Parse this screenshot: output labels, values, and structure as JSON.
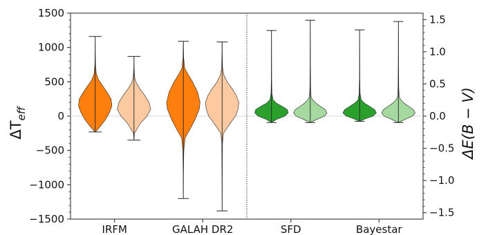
{
  "chart_data": {
    "type": "violin",
    "categories": [
      "IRFM",
      "GALAH DR2",
      "SFD",
      "Bayestar"
    ],
    "left_axis": {
      "label_symbol": "ΔT",
      "label_subscript": "eff",
      "ylim": [
        -1500,
        1500
      ],
      "ticks": [
        -1500,
        -1000,
        -500,
        0,
        500,
        1000,
        1500
      ],
      "tick_labels": [
        "−1500",
        "−1000",
        "−500",
        "0",
        "500",
        "1000",
        "1500"
      ]
    },
    "right_axis": {
      "label": "ΔE(B − V)",
      "ylim": [
        -1.6,
        1.6
      ],
      "ticks": [
        -1.5,
        -1.0,
        -0.5,
        0.0,
        0.5,
        1.0,
        1.5
      ],
      "tick_labels": [
        "−1.5",
        "−1.0",
        "−0.5",
        "0.0",
        "0.5",
        "1.0",
        "1.5"
      ]
    },
    "divider_between": [
      "GALAH DR2",
      "SFD"
    ],
    "zero_line": true,
    "violins": [
      {
        "category": "IRFM",
        "axis": "left",
        "shade": "dark",
        "color": "#ff7f0e",
        "min": -230,
        "max": 1160,
        "median": 150,
        "width": 0.26,
        "profile": [
          [
            -230,
            0.02
          ],
          [
            -150,
            0.3
          ],
          [
            -50,
            0.62
          ],
          [
            50,
            0.85
          ],
          [
            150,
            1.0
          ],
          [
            250,
            0.95
          ],
          [
            350,
            0.7
          ],
          [
            450,
            0.42
          ],
          [
            530,
            0.2
          ],
          [
            620,
            0.06
          ],
          [
            750,
            0.02
          ],
          [
            900,
            0.01
          ],
          [
            1160,
            0.0
          ]
        ]
      },
      {
        "category": "IRFM",
        "axis": "left",
        "shade": "light",
        "color": "#fcc9a0",
        "min": -350,
        "max": 870,
        "median": 140,
        "width": 0.26,
        "profile": [
          [
            -350,
            0.0
          ],
          [
            -250,
            0.03
          ],
          [
            -100,
            0.4
          ],
          [
            0,
            0.78
          ],
          [
            100,
            1.0
          ],
          [
            200,
            0.9
          ],
          [
            300,
            0.65
          ],
          [
            400,
            0.35
          ],
          [
            480,
            0.15
          ],
          [
            550,
            0.05
          ],
          [
            700,
            0.01
          ],
          [
            870,
            0.0
          ]
        ]
      },
      {
        "category": "GALAH DR2",
        "axis": "left",
        "shade": "dark",
        "color": "#ff7f0e",
        "min": -1200,
        "max": 1090,
        "median": 150,
        "width": 0.22,
        "profile": [
          [
            -1200,
            0.0
          ],
          [
            -800,
            0.01
          ],
          [
            -500,
            0.03
          ],
          [
            -320,
            0.1
          ],
          [
            -200,
            0.38
          ],
          [
            -50,
            0.7
          ],
          [
            100,
            0.95
          ],
          [
            200,
            1.0
          ],
          [
            350,
            0.85
          ],
          [
            500,
            0.55
          ],
          [
            620,
            0.25
          ],
          [
            700,
            0.08
          ],
          [
            850,
            0.02
          ],
          [
            1090,
            0.0
          ]
        ]
      },
      {
        "category": "GALAH DR2",
        "axis": "left",
        "shade": "light",
        "color": "#fcc9a0",
        "min": -1380,
        "max": 1080,
        "median": 140,
        "width": 0.22,
        "profile": [
          [
            -1380,
            0.0
          ],
          [
            -800,
            0.01
          ],
          [
            -400,
            0.02
          ],
          [
            -250,
            0.08
          ],
          [
            -100,
            0.5
          ],
          [
            0,
            0.8
          ],
          [
            100,
            0.95
          ],
          [
            200,
            1.0
          ],
          [
            300,
            0.85
          ],
          [
            400,
            0.6
          ],
          [
            500,
            0.3
          ],
          [
            600,
            0.1
          ],
          [
            700,
            0.03
          ],
          [
            900,
            0.01
          ],
          [
            1080,
            0.0
          ]
        ]
      },
      {
        "category": "SFD",
        "axis": "right",
        "shade": "dark",
        "color": "#2ca02c",
        "min": -0.1,
        "max": 1.33,
        "median": 0.07,
        "width": 0.2,
        "profile": [
          [
            -0.1,
            0.0
          ],
          [
            -0.05,
            0.3
          ],
          [
            0.0,
            0.8
          ],
          [
            0.05,
            1.0
          ],
          [
            0.1,
            0.95
          ],
          [
            0.15,
            0.65
          ],
          [
            0.2,
            0.3
          ],
          [
            0.25,
            0.1
          ],
          [
            0.35,
            0.03
          ],
          [
            0.6,
            0.01
          ],
          [
            1.33,
            0.0
          ]
        ]
      },
      {
        "category": "SFD",
        "axis": "right",
        "shade": "light",
        "color": "#a6d9a0",
        "min": -0.1,
        "max": 1.49,
        "median": 0.07,
        "width": 0.2,
        "profile": [
          [
            -0.1,
            0.0
          ],
          [
            -0.05,
            0.4
          ],
          [
            0.0,
            0.85
          ],
          [
            0.05,
            1.0
          ],
          [
            0.1,
            0.9
          ],
          [
            0.15,
            0.62
          ],
          [
            0.2,
            0.35
          ],
          [
            0.25,
            0.15
          ],
          [
            0.3,
            0.05
          ],
          [
            0.45,
            0.02
          ],
          [
            0.8,
            0.01
          ],
          [
            1.49,
            0.0
          ]
        ]
      },
      {
        "category": "Bayestar",
        "axis": "right",
        "shade": "dark",
        "color": "#2ca02c",
        "min": -0.08,
        "max": 1.34,
        "median": 0.07,
        "width": 0.2,
        "profile": [
          [
            -0.08,
            0.0
          ],
          [
            -0.04,
            0.35
          ],
          [
            0.0,
            0.8
          ],
          [
            0.05,
            1.0
          ],
          [
            0.1,
            0.9
          ],
          [
            0.15,
            0.6
          ],
          [
            0.2,
            0.3
          ],
          [
            0.25,
            0.1
          ],
          [
            0.35,
            0.03
          ],
          [
            0.6,
            0.01
          ],
          [
            1.34,
            0.0
          ]
        ]
      },
      {
        "category": "Bayestar",
        "axis": "right",
        "shade": "light",
        "color": "#a6d9a0",
        "min": -0.1,
        "max": 1.47,
        "median": 0.07,
        "width": 0.2,
        "profile": [
          [
            -0.1,
            0.0
          ],
          [
            -0.05,
            0.4
          ],
          [
            0.0,
            0.85
          ],
          [
            0.05,
            1.0
          ],
          [
            0.1,
            0.9
          ],
          [
            0.15,
            0.62
          ],
          [
            0.2,
            0.35
          ],
          [
            0.25,
            0.15
          ],
          [
            0.3,
            0.05
          ],
          [
            0.45,
            0.02
          ],
          [
            0.8,
            0.01
          ],
          [
            1.47,
            0.0
          ]
        ]
      }
    ]
  }
}
